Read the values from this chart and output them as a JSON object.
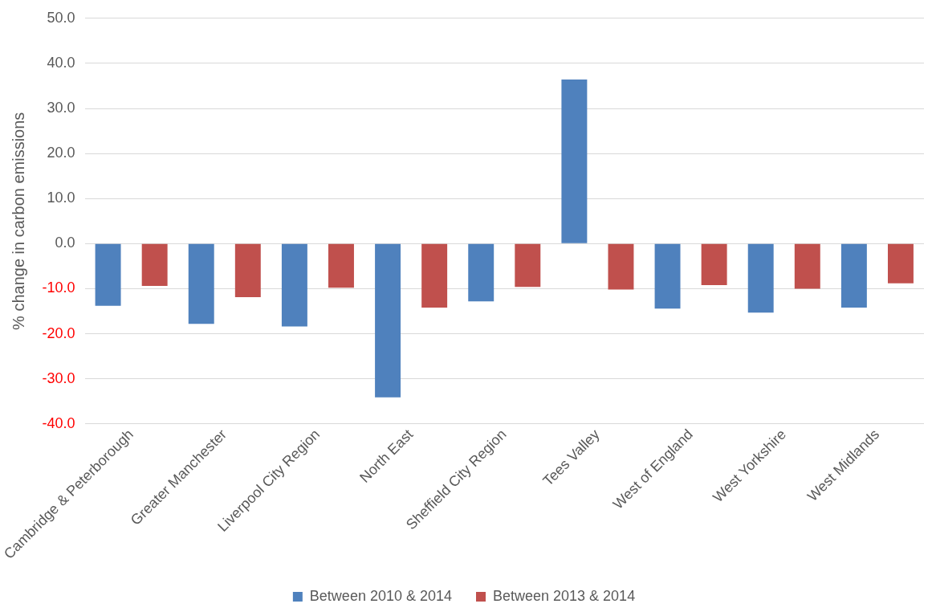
{
  "chart_data": {
    "type": "bar",
    "ylabel": "% change in carbon emissions",
    "categories": [
      "Cambridge & Peterborough",
      "Greater Manchester",
      "Liverpool City Region",
      "North East",
      "Sheffield City Region",
      "Tees Valley",
      "West of England",
      "West Yorkshire",
      "West Midlands"
    ],
    "series": [
      {
        "name": "Between 2010 & 2014",
        "color": "#4f81bd",
        "values": [
          -13.8,
          -17.8,
          -18.4,
          -34.1,
          -12.8,
          36.4,
          -14.4,
          -15.3,
          -14.2
        ]
      },
      {
        "name": "Between 2013 & 2014",
        "color": "#c0504d",
        "values": [
          -9.4,
          -11.9,
          -9.8,
          -14.2,
          -9.6,
          -10.2,
          -9.2,
          -10.0,
          -8.8
        ]
      }
    ],
    "ylim": [
      -40,
      50
    ],
    "yticks": [
      {
        "value": -40,
        "label": "-40.0"
      },
      {
        "value": -30,
        "label": "-30.0"
      },
      {
        "value": -20,
        "label": "-20.0"
      },
      {
        "value": -10,
        "label": "-10.0"
      },
      {
        "value": 0,
        "label": "0.0"
      },
      {
        "value": 10,
        "label": "10.0"
      },
      {
        "value": 20,
        "label": "20.0"
      },
      {
        "value": 30,
        "label": "30.0"
      },
      {
        "value": 40,
        "label": "40.0"
      },
      {
        "value": 50,
        "label": "50.0"
      }
    ],
    "grid": "y",
    "legend": "bottom"
  }
}
